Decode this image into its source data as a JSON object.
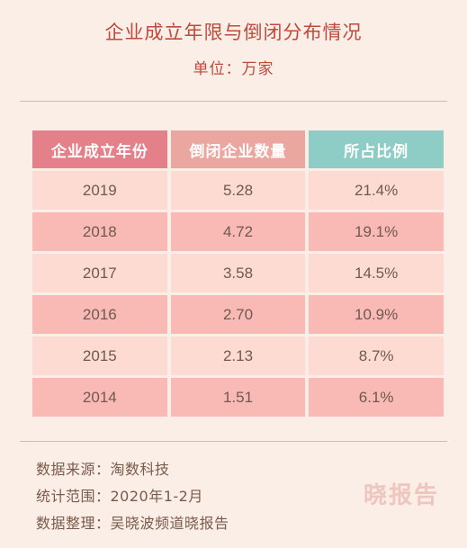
{
  "chart_data": {
    "type": "table",
    "title": "企业成立年限与倒闭分布情况",
    "subtitle": "单位：万家",
    "columns": [
      "企业成立年份",
      "倒闭企业数量",
      "所占比例"
    ],
    "rows": [
      [
        "2019",
        "5.28",
        "21.4%"
      ],
      [
        "2018",
        "4.72",
        "19.1%"
      ],
      [
        "2017",
        "3.58",
        "14.5%"
      ],
      [
        "2016",
        "2.70",
        "10.9%"
      ],
      [
        "2015",
        "2.13",
        "8.7%"
      ],
      [
        "2014",
        "1.51",
        "6.1%"
      ]
    ]
  },
  "footer": {
    "source": "数据来源：淘数科技",
    "range": "统计范围：2020年1-2月",
    "compiled": "数据整理：吴晓波频道晓报告"
  },
  "watermark": "晓报告",
  "colors": {
    "background": "#fbeee6",
    "title": "#c0493e",
    "header_col1": "#e4808a",
    "header_col2": "#eaa7a0",
    "header_col3": "#8dcdc6",
    "row_light": "#fddbd3",
    "row_dark": "#f9b9b5"
  }
}
